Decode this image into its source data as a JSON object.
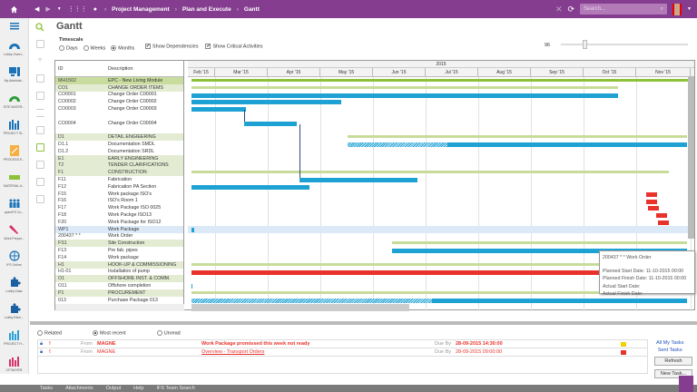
{
  "topbar": {
    "breadcrumbs": [
      "Project Management",
      "Plan and Execute",
      "Gantt"
    ],
    "search_placeholder": "Search...",
    "icons": [
      "home-icon",
      "back-icon",
      "forward-icon",
      "dropdown-icon",
      "apps-grid-icon",
      "dot-icon",
      "close-icon",
      "refresh-icon",
      "search-icon",
      "avatar"
    ]
  },
  "leftnav": {
    "items": [
      {
        "label": "Lobby Overv...",
        "icon": "gauge-icon",
        "color": "#1a73b8"
      },
      {
        "label": "My Administ...",
        "icon": "computer-icon",
        "color": "#1a73b8"
      },
      {
        "label": "SITE MATER...",
        "icon": "gauge-icon",
        "color": "#2e9e3a"
      },
      {
        "label": "PROJECT SI...",
        "icon": "bar-chart-icon",
        "color": "#1a73b8"
      },
      {
        "label": "PROCESS E...",
        "icon": "resize-icon",
        "color": "#f0a030"
      },
      {
        "label": "MATERIAL A...",
        "icon": "keyboard-icon",
        "color": "#8ec13a"
      },
      {
        "label": "openIFS Co...",
        "icon": "people-icon",
        "color": "#1a73b8"
      },
      {
        "label": "Work Prepar...",
        "icon": "wrench-icon",
        "color": "#d6336c"
      },
      {
        "label": "IFS Online",
        "icon": "globe-icon",
        "color": "#1a73b8"
      },
      {
        "label": "Lobby Data",
        "icon": "puzzle-icon",
        "color": "#1a5fa0"
      },
      {
        "label": "Lobby Elem...",
        "icon": "puzzle-icon",
        "color": "#1a5fa0"
      },
      {
        "label": "PROJECT H...",
        "icon": "bar-chart-icon",
        "color": "#2aa0d8"
      },
      {
        "label": "CP BUYER",
        "icon": "bar-chart-icon",
        "color": "#d6336c"
      }
    ]
  },
  "page": {
    "title": "Gantt",
    "timescale_label": "Timescale",
    "timescale_options": [
      "Days",
      "Weeks",
      "Months"
    ],
    "timescale_selected": "Months",
    "show_dependencies": "Show Dependencies",
    "show_critical": "Show Critical Activities",
    "zoom_value": "96"
  },
  "table": {
    "headers": {
      "id": "ID",
      "description": "Description"
    },
    "rows": [
      {
        "id": "MH1502",
        "desc": "EPC - New Living Module",
        "type": "top"
      },
      {
        "id": "CO1",
        "desc": "CHANGE ORDER ITEMS",
        "type": "grp"
      },
      {
        "id": "CO0001",
        "desc": "Change Order C00001",
        "type": ""
      },
      {
        "id": "CO0002",
        "desc": "Change Order C00002",
        "type": ""
      },
      {
        "id": "CO0003",
        "desc": "Change Order C00003",
        "type": ""
      },
      {
        "id": "",
        "desc": "",
        "type": ""
      },
      {
        "id": "CO0004",
        "desc": "Change Order C00004",
        "type": ""
      },
      {
        "id": "",
        "desc": "",
        "type": ""
      },
      {
        "id": "D1",
        "desc": "DETAIL ENGIEERING",
        "type": "grp"
      },
      {
        "id": "D1.1",
        "desc": "Documentation SMDL",
        "type": ""
      },
      {
        "id": "D1.2",
        "desc": "Documentation SRDL",
        "type": ""
      },
      {
        "id": "E1",
        "desc": "EARLY ENGINEERING",
        "type": "grp"
      },
      {
        "id": "T2",
        "desc": "TENDER CLARIFICATIONS",
        "type": "grp"
      },
      {
        "id": "F1",
        "desc": "CONSTRUCTION",
        "type": "grp"
      },
      {
        "id": "F11",
        "desc": "Fabrication",
        "type": ""
      },
      {
        "id": "F12",
        "desc": "Fabrication PA Section",
        "type": ""
      },
      {
        "id": "F15",
        "desc": "Work package ISO's",
        "type": ""
      },
      {
        "id": "F16",
        "desc": "ISO's Room 1",
        "type": ""
      },
      {
        "id": "F17",
        "desc": "Work Package ISO 0025",
        "type": ""
      },
      {
        "id": "F18",
        "desc": "Work Packge ISO13",
        "type": ""
      },
      {
        "id": "F20",
        "desc": "Work Package for ISO12",
        "type": ""
      },
      {
        "id": "WP1",
        "desc": "Work Package",
        "type": ""
      },
      {
        "id": "200437 * *",
        "desc": "Work Order",
        "type": ""
      },
      {
        "id": "FS1",
        "desc": "Site Construction",
        "type": "grp"
      },
      {
        "id": "F13",
        "desc": "Pre fab. pipes",
        "type": ""
      },
      {
        "id": "F14",
        "desc": "Work package",
        "type": ""
      },
      {
        "id": "H1",
        "desc": "HOOK-UP & COMMISSIONING",
        "type": "grp"
      },
      {
        "id": "H1-01",
        "desc": "Installation of pump",
        "type": ""
      },
      {
        "id": "O1",
        "desc": "OFFSHORE INST. & COMM.",
        "type": "grp"
      },
      {
        "id": "O11",
        "desc": "Offshore completion",
        "type": ""
      },
      {
        "id": "P1",
        "desc": "PROCUREMENT",
        "type": "grp"
      },
      {
        "id": "013",
        "desc": "Purchase Package 013",
        "type": ""
      }
    ]
  },
  "timeline": {
    "year": "2015",
    "months": [
      "Feb '15",
      "Mar '15",
      "Apr '15",
      "May '15",
      "Jun '15",
      "Jul '15",
      "Aug '15",
      "Sep '15",
      "Oct '15",
      "Nov '15"
    ]
  },
  "tooltip": {
    "title": "200437 * * Work Order",
    "planned_start": "Planned Start Date: 11-10-2015 00:00",
    "planned_finish": "Planned Finish Date: 11-10-2015 00:00",
    "actual_start": "Actual Start Date:",
    "actual_finish": "Actual Finish Date:"
  },
  "messages": {
    "filters": [
      "Related",
      "Most recent",
      "Unread"
    ],
    "selected_filter": "Most recent",
    "items": [
      {
        "from_label": "From",
        "from": "MAGNE",
        "subject": "Work Package promissed this week not ready",
        "due_label": "Due By",
        "due": "28-09-2015 14:30:00",
        "flag_color": "#f0d000",
        "link": false
      },
      {
        "from_label": "From",
        "from": "MAGNE",
        "subject": "Overview - Transport Orders",
        "due_label": "Due By",
        "due": "28-09-2015 09:00:00",
        "flag_color": "#e8322b",
        "link": true
      }
    ],
    "links": [
      "All My Tasks",
      "Sent Tasks"
    ],
    "refresh": "Refresh",
    "new_task": "New Task..."
  },
  "bottombar": {
    "tabs": [
      "Tasks",
      "Attachments",
      "Output",
      "Help",
      "IFS Team Search"
    ]
  },
  "colors": {
    "accent": "#843d8f",
    "bar_blue": "#1ea2d4",
    "bar_green": "#c8dc9a",
    "bar_red": "#e8322b"
  }
}
